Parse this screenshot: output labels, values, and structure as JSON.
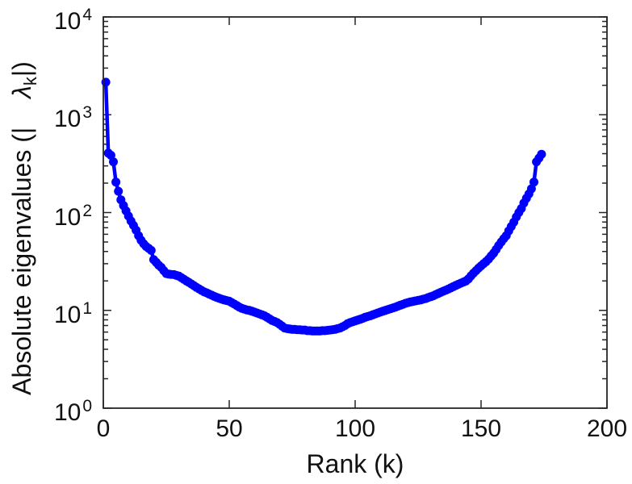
{
  "figure": {
    "background": "#ffffff",
    "text_color": "#111111",
    "axis_color": "#262626"
  },
  "chart_data": {
    "type": "line",
    "title": "",
    "xlabel": "Rank (k)",
    "ylabel": "Absolute eigenvalues (|λ_k|)",
    "ylabel_parts": {
      "prefix": "Absolute eigenvalues (|",
      "lambda": "λ",
      "sub": "k",
      "suffix": "|)"
    },
    "grid": false,
    "legend": null,
    "line_color": "#0000ff",
    "marker": "point",
    "x_axis": {
      "min": 0,
      "max": 200,
      "ticks": [
        0,
        50,
        100,
        150,
        200
      ]
    },
    "y_axis": {
      "scale": "log",
      "min": 1,
      "max": 10000,
      "tick_base": "10",
      "tick_exponents": [
        0,
        1,
        2,
        3,
        4
      ],
      "minor_ticks": true
    },
    "series": [
      {
        "name": "|lambda_k|",
        "x_start": 1,
        "x_step": 1,
        "y": [
          2150,
          405,
          385,
          330,
          205,
          165,
          135,
          118,
          104,
          92,
          82,
          74,
          66,
          58,
          52,
          48,
          45,
          43,
          41,
          33,
          31,
          29,
          27.5,
          25.5,
          23.8,
          23.5,
          23.3,
          23.2,
          22.8,
          22.4,
          21.6,
          20.8,
          20,
          19.3,
          18.6,
          17.9,
          17.2,
          16.6,
          16,
          15.5,
          15.1,
          14.7,
          14.3,
          13.9,
          13.6,
          13.3,
          13,
          12.8,
          12.6,
          12.4,
          12,
          11.6,
          11.2,
          10.8,
          10.5,
          10.3,
          10.1,
          10,
          9.8,
          9.6,
          9.4,
          9.2,
          9,
          8.8,
          8.5,
          8.2,
          7.9,
          7.7,
          7.5,
          7.2,
          6.9,
          6.6,
          6.5,
          6.45,
          6.4,
          6.4,
          6.35,
          6.35,
          6.3,
          6.3,
          6.2,
          6.2,
          6.15,
          6.15,
          6.15,
          6.15,
          6.2,
          6.2,
          6.25,
          6.3,
          6.35,
          6.4,
          6.5,
          6.6,
          6.8,
          7,
          7.3,
          7.5,
          7.65,
          7.8,
          7.95,
          8.1,
          8.3,
          8.5,
          8.65,
          8.8,
          9,
          9.2,
          9.4,
          9.6,
          9.8,
          10,
          10.2,
          10.4,
          10.6,
          10.8,
          11.05,
          11.3,
          11.55,
          11.8,
          12,
          12.2,
          12.35,
          12.5,
          12.65,
          12.8,
          13,
          13.2,
          13.5,
          13.8,
          14.1,
          14.5,
          14.9,
          15.3,
          15.7,
          16.1,
          16.5,
          17,
          17.5,
          18,
          18.5,
          19,
          19.5,
          20,
          21,
          22.5,
          24,
          25.5,
          27,
          28.5,
          30,
          31.5,
          33.5,
          36,
          38.5,
          42,
          46,
          50,
          54,
          58,
          65,
          72,
          80,
          90,
          100,
          110,
          125,
          140,
          155,
          175,
          205,
          330,
          360,
          395
        ]
      }
    ]
  }
}
